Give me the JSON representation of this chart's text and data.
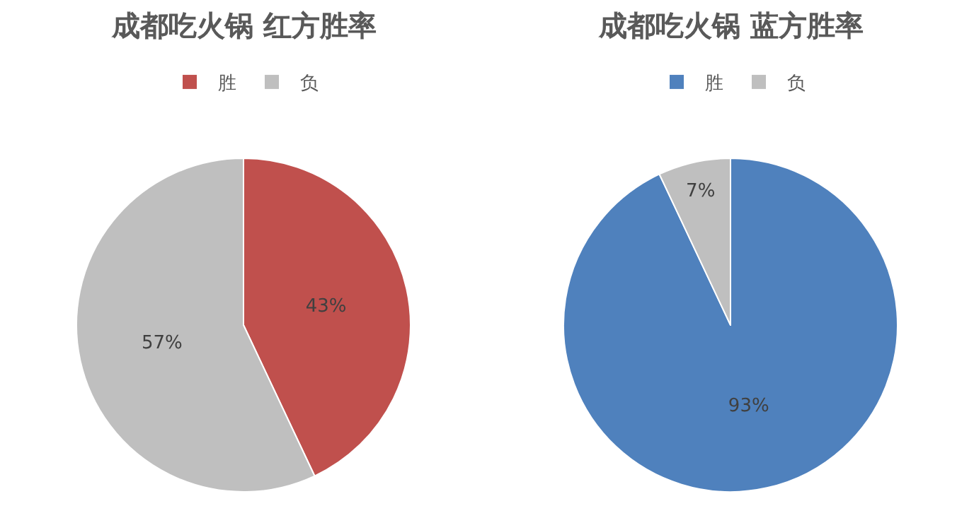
{
  "chart_data": [
    {
      "type": "pie",
      "title": "成都吃火锅 红方胜率",
      "categories": [
        "胜",
        "负"
      ],
      "values": [
        43,
        57
      ],
      "colors": [
        "#c0504d",
        "#bfbfbf"
      ],
      "value_labels": [
        "43%",
        "57%"
      ],
      "legend": "top"
    },
    {
      "type": "pie",
      "title": "成都吃火锅 蓝方胜率",
      "categories": [
        "胜",
        "负"
      ],
      "values": [
        93,
        7
      ],
      "colors": [
        "#4f81bd",
        "#bfbfbf"
      ],
      "value_labels": [
        "93%",
        "7%"
      ],
      "legend": "top"
    }
  ]
}
